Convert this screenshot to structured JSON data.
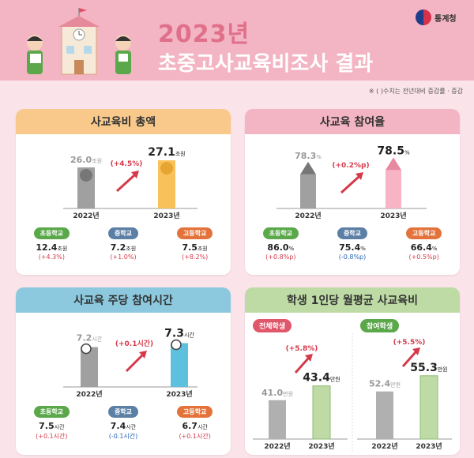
{
  "header": {
    "title_year": "2023년",
    "title_main": "초중고사교육비조사 결과",
    "agency": "통계청",
    "note": "※ (      )수치는 전년대비 증감률 · 증감"
  },
  "colors": {
    "pink": "#f3b4c3",
    "orange": "#f9c98c",
    "blue": "#8cc9de",
    "green": "#bedba5"
  },
  "chart_data": [
    {
      "type": "bar",
      "title": "사교육비 총액",
      "categories": [
        "2022년",
        "2023년"
      ],
      "values": [
        26.0,
        27.1
      ],
      "value_labels": [
        "26.0",
        "27.1"
      ],
      "unit": "조원",
      "change": "(+4.5%)",
      "breakdown": [
        {
          "label": "초등학교",
          "value": "12.4",
          "unit": "조원",
          "change": "(+4.3%)"
        },
        {
          "label": "중학교",
          "value": "7.2",
          "unit": "조원",
          "change": "(+1.0%)"
        },
        {
          "label": "고등학교",
          "value": "7.5",
          "unit": "조원",
          "change": "(+8.2%)"
        }
      ]
    },
    {
      "type": "bar",
      "title": "사교육 참여율",
      "categories": [
        "2022년",
        "2023년"
      ],
      "values": [
        78.3,
        78.5
      ],
      "value_labels": [
        "78.3",
        "78.5"
      ],
      "unit": "%",
      "change": "(+0.2%p)",
      "breakdown": [
        {
          "label": "초등학교",
          "value": "86.0",
          "unit": "%",
          "change": "(+0.8%p)"
        },
        {
          "label": "중학교",
          "value": "75.4",
          "unit": "%",
          "change": "(-0.8%p)"
        },
        {
          "label": "고등학교",
          "value": "66.4",
          "unit": "%",
          "change": "(+0.5%p)"
        }
      ]
    },
    {
      "type": "bar",
      "title": "사교육 주당 참여시간",
      "categories": [
        "2022년",
        "2023년"
      ],
      "values": [
        7.2,
        7.3
      ],
      "value_labels": [
        "7.2",
        "7.3"
      ],
      "unit": "시간",
      "change": "(+0.1시간)",
      "breakdown": [
        {
          "label": "초등학교",
          "value": "7.5",
          "unit": "시간",
          "change": "(+0.1시간)"
        },
        {
          "label": "중학교",
          "value": "7.4",
          "unit": "시간",
          "change": "(-0.1시간)"
        },
        {
          "label": "고등학교",
          "value": "6.7",
          "unit": "시간",
          "change": "(+0.1시간)"
        }
      ]
    },
    {
      "type": "bar",
      "title": "학생 1인당 월평균 사교육비",
      "categories": [
        "2022년",
        "2023년"
      ],
      "series": [
        {
          "name": "전체학생",
          "values": [
            41.0,
            43.4
          ],
          "value_labels": [
            "41.0",
            "43.4"
          ],
          "change": "(+5.8%)"
        },
        {
          "name": "참여학생",
          "values": [
            52.4,
            55.3
          ],
          "value_labels": [
            "52.4",
            "55.3"
          ],
          "change": "(+5.5%)"
        }
      ],
      "unit": "만원"
    }
  ]
}
